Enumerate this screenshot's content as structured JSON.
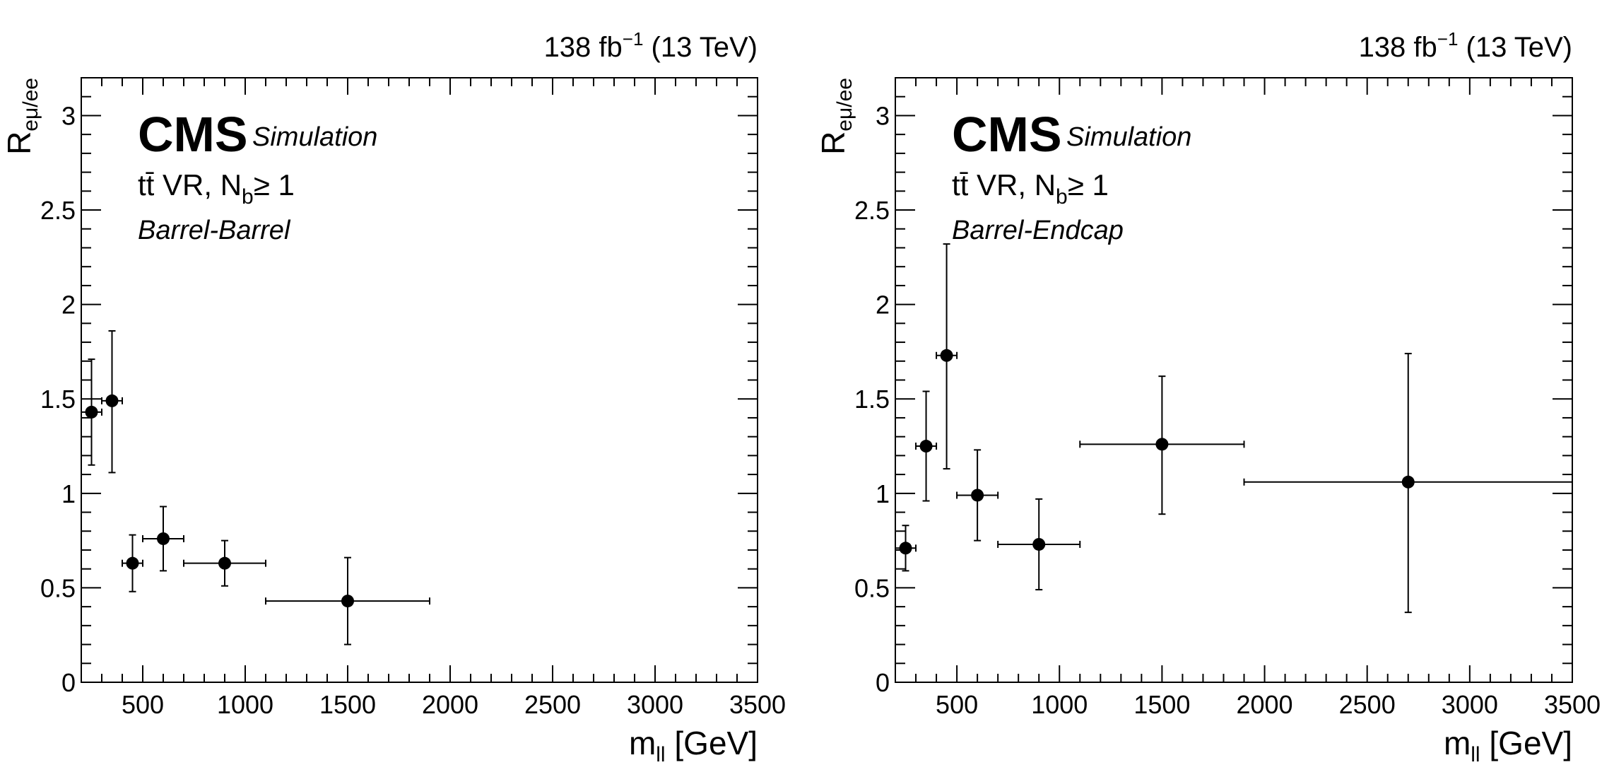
{
  "chart_data": [
    {
      "type": "scatter",
      "panel": "left",
      "lumi_label": "138 fb",
      "lumi_exponent": "−1",
      "energy_label": " (13 TeV)",
      "experiment": "CMS",
      "experiment_sub": "Simulation",
      "region_main": "tt̄ VR, N",
      "region_sub": "b",
      "region_rest": "≥ 1",
      "category": "Barrel-Barrel",
      "xlabel": "m",
      "xlabel_sub": "ll",
      "xlabel_unit": " [GeV]",
      "ylabel": "R",
      "ylabel_sub": "eμ/ee",
      "xlim": [
        200,
        3500
      ],
      "ylim": [
        0,
        3.2
      ],
      "xticks": [
        500,
        1000,
        1500,
        2000,
        2500,
        3000,
        3500
      ],
      "xtick_labels": [
        "500",
        "1000",
        "1500",
        "2000",
        "2500",
        "3000",
        "3500"
      ],
      "yticks": [
        0,
        0.5,
        1,
        1.5,
        2,
        2.5,
        3
      ],
      "ytick_labels": [
        "0",
        "0.5",
        "1",
        "1.5",
        "2",
        "2.5",
        "3"
      ],
      "grid": false,
      "points": [
        {
          "x": 250,
          "xerr_lo": 50,
          "xerr_hi": 50,
          "y": 1.43,
          "yerr_lo": 0.28,
          "yerr_hi": 0.28
        },
        {
          "x": 350,
          "xerr_lo": 50,
          "xerr_hi": 50,
          "y": 1.49,
          "yerr_lo": 0.38,
          "yerr_hi": 0.37
        },
        {
          "x": 450,
          "xerr_lo": 50,
          "xerr_hi": 50,
          "y": 0.63,
          "yerr_lo": 0.15,
          "yerr_hi": 0.15
        },
        {
          "x": 600,
          "xerr_lo": 100,
          "xerr_hi": 100,
          "y": 0.76,
          "yerr_lo": 0.17,
          "yerr_hi": 0.17
        },
        {
          "x": 900,
          "xerr_lo": 200,
          "xerr_hi": 200,
          "y": 0.63,
          "yerr_lo": 0.12,
          "yerr_hi": 0.12
        },
        {
          "x": 1500,
          "xerr_lo": 400,
          "xerr_hi": 400,
          "y": 0.43,
          "yerr_lo": 0.23,
          "yerr_hi": 0.23
        }
      ]
    },
    {
      "type": "scatter",
      "panel": "right",
      "lumi_label": "138 fb",
      "lumi_exponent": "−1",
      "energy_label": " (13 TeV)",
      "experiment": "CMS",
      "experiment_sub": "Simulation",
      "region_main": "tt̄ VR, N",
      "region_sub": "b",
      "region_rest": "≥ 1",
      "category": "Barrel-Endcap",
      "xlabel": "m",
      "xlabel_sub": "ll",
      "xlabel_unit": " [GeV]",
      "ylabel": "R",
      "ylabel_sub": "eμ/ee",
      "xlim": [
        200,
        3500
      ],
      "ylim": [
        0,
        3.2
      ],
      "xticks": [
        500,
        1000,
        1500,
        2000,
        2500,
        3000,
        3500
      ],
      "xtick_labels": [
        "500",
        "1000",
        "1500",
        "2000",
        "2500",
        "3000",
        "3500"
      ],
      "yticks": [
        0,
        0.5,
        1,
        1.5,
        2,
        2.5,
        3
      ],
      "ytick_labels": [
        "0",
        "0.5",
        "1",
        "1.5",
        "2",
        "2.5",
        "3"
      ],
      "grid": false,
      "points": [
        {
          "x": 250,
          "xerr_lo": 50,
          "xerr_hi": 50,
          "y": 0.71,
          "yerr_lo": 0.12,
          "yerr_hi": 0.12
        },
        {
          "x": 350,
          "xerr_lo": 50,
          "xerr_hi": 50,
          "y": 1.25,
          "yerr_lo": 0.29,
          "yerr_hi": 0.29
        },
        {
          "x": 450,
          "xerr_lo": 50,
          "xerr_hi": 50,
          "y": 1.73,
          "yerr_lo": 0.6,
          "yerr_hi": 0.59
        },
        {
          "x": 600,
          "xerr_lo": 100,
          "xerr_hi": 100,
          "y": 0.99,
          "yerr_lo": 0.24,
          "yerr_hi": 0.24
        },
        {
          "x": 900,
          "xerr_lo": 200,
          "xerr_hi": 200,
          "y": 0.73,
          "yerr_lo": 0.24,
          "yerr_hi": 0.24
        },
        {
          "x": 1500,
          "xerr_lo": 400,
          "xerr_hi": 400,
          "y": 1.26,
          "yerr_lo": 0.37,
          "yerr_hi": 0.36
        },
        {
          "x": 2700,
          "xerr_lo": 800,
          "xerr_hi": 800,
          "y": 1.06,
          "yerr_lo": 0.69,
          "yerr_hi": 0.68
        }
      ]
    }
  ]
}
